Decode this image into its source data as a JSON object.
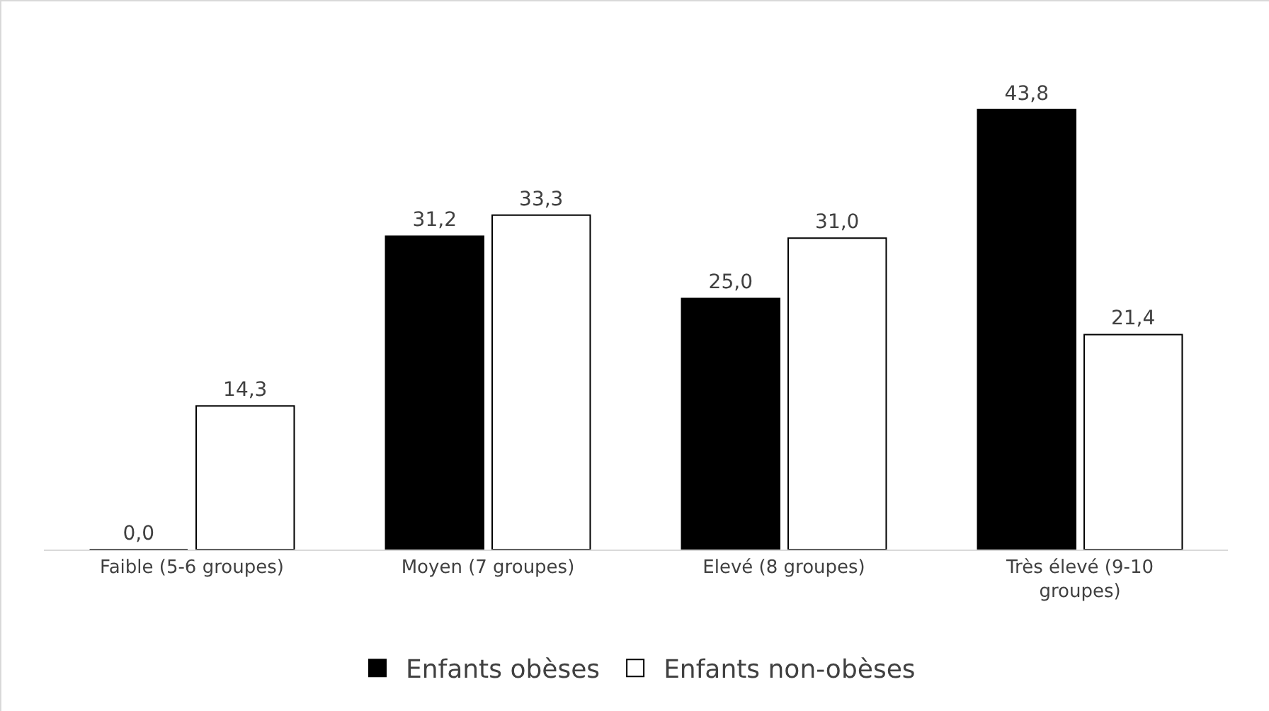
{
  "chart_data": {
    "type": "bar",
    "categories": [
      "Faible (5-6 groupes)",
      "Moyen (7 groupes)",
      "Elevé (8 groupes)",
      "Très élevé (9-10 groupes)"
    ],
    "series": [
      {
        "name": "Enfants obèses",
        "color": "#000000",
        "values": [
          0.0,
          31.2,
          25.0,
          43.8
        ],
        "value_labels": [
          "0,0",
          "31,2",
          "25,0",
          "43,8"
        ]
      },
      {
        "name": "Enfants non-obèses",
        "color": "#ffffff",
        "values": [
          14.3,
          33.3,
          31.0,
          21.4
        ],
        "value_labels": [
          "14,3",
          "33,3",
          "31,0",
          "21,4"
        ]
      }
    ],
    "legend": "bottom",
    "tick_labels": "x"
  }
}
